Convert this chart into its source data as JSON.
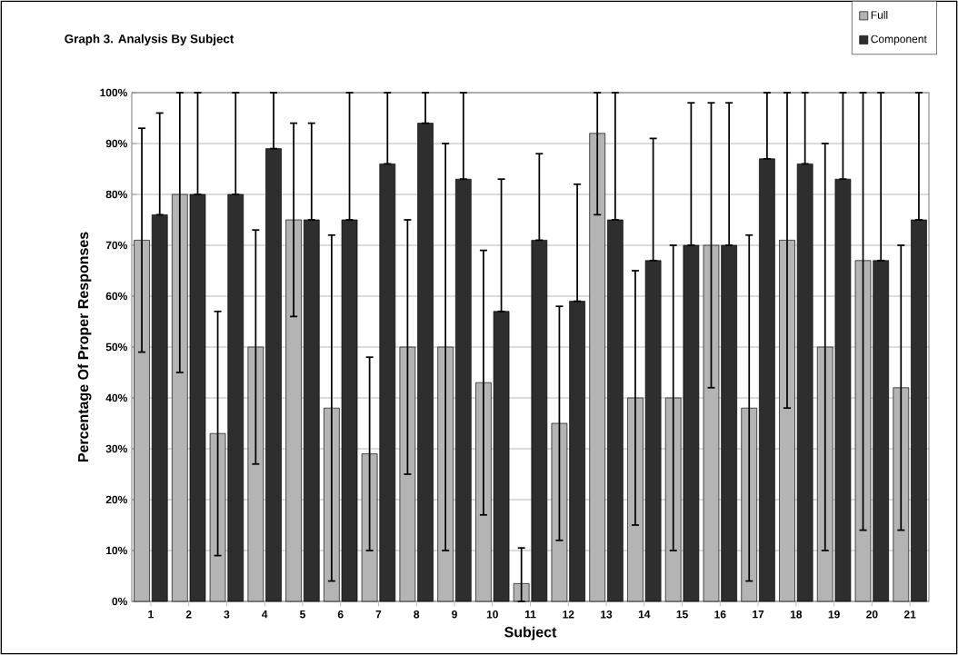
{
  "chart_data": {
    "type": "bar",
    "title": "Graph 3.  Analysis By Subject",
    "xlabel": "Subject",
    "ylabel": "Percentage Of Proper Responses",
    "categories": [
      "1",
      "2",
      "3",
      "4",
      "5",
      "6",
      "7",
      "8",
      "9",
      "10",
      "11",
      "12",
      "13",
      "14",
      "15",
      "16",
      "17",
      "18",
      "19",
      "20",
      "21"
    ],
    "series": [
      {
        "name": "Full",
        "color": "#b4b4b4",
        "values": [
          71,
          80,
          33,
          50,
          75,
          38,
          29,
          50,
          50,
          43,
          3.5,
          35,
          92,
          40,
          40,
          70,
          38,
          71,
          50,
          67,
          42
        ],
        "errors": [
          [
            49,
            93
          ],
          [
            45,
            100
          ],
          [
            9,
            57
          ],
          [
            27,
            73
          ],
          [
            56,
            94
          ],
          [
            4,
            72
          ],
          [
            10,
            48
          ],
          [
            25,
            75
          ],
          [
            10,
            90
          ],
          [
            17,
            69
          ],
          [
            0,
            10.5
          ],
          [
            12,
            58
          ],
          [
            76,
            100
          ],
          [
            15,
            65
          ],
          [
            10,
            70
          ],
          [
            42,
            98
          ],
          [
            4,
            72
          ],
          [
            38,
            100
          ],
          [
            10,
            90
          ],
          [
            14,
            100
          ],
          [
            14,
            70
          ]
        ]
      },
      {
        "name": "Component",
        "color": "#2e2e2e",
        "values": [
          76,
          80,
          80,
          89,
          75,
          75,
          86,
          94,
          83,
          57,
          71,
          59,
          75,
          67,
          70,
          70,
          87,
          86,
          83,
          67,
          75
        ],
        "errors": [
          [
            76,
            96
          ],
          [
            80,
            100
          ],
          [
            80,
            100
          ],
          [
            89,
            100
          ],
          [
            75,
            94
          ],
          [
            75,
            100
          ],
          [
            86,
            100
          ],
          [
            94,
            100
          ],
          [
            83,
            100
          ],
          [
            57,
            83
          ],
          [
            71,
            88
          ],
          [
            59,
            82
          ],
          [
            75,
            100
          ],
          [
            67,
            91
          ],
          [
            70,
            98
          ],
          [
            70,
            98
          ],
          [
            87,
            100
          ],
          [
            86,
            100
          ],
          [
            83,
            100
          ],
          [
            67,
            100
          ],
          [
            75,
            100
          ]
        ]
      }
    ],
    "ylim": [
      0,
      100
    ],
    "yticks": [
      {
        "value": 0,
        "label": "0%"
      },
      {
        "value": 10,
        "label": "10%"
      },
      {
        "value": 20,
        "label": "20%"
      },
      {
        "value": 30,
        "label": "30%"
      },
      {
        "value": 40,
        "label": "40%"
      },
      {
        "value": 50,
        "label": "50%"
      },
      {
        "value": 60,
        "label": "60%"
      },
      {
        "value": 70,
        "label": "70%"
      },
      {
        "value": 80,
        "label": "80%"
      },
      {
        "value": 90,
        "label": "90%"
      },
      {
        "value": 100,
        "label": "100%"
      }
    ],
    "grid": "y",
    "legend": "top right"
  }
}
